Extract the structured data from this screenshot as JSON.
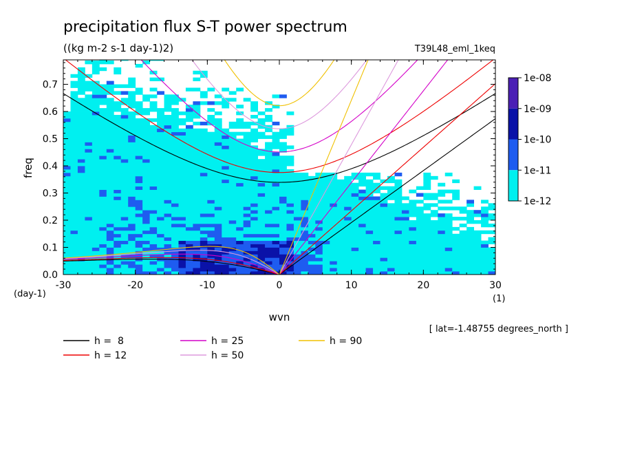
{
  "chart_data": {
    "type": "heatmap",
    "title": "precipitation flux S-T power spectrum",
    "subtitle": "((kg m-2 s-1 day-1)2)",
    "run_label": "T39L48_eml_1keq",
    "xlabel": "wvn",
    "ylabel": "freq",
    "x_unit": "(1)",
    "y_unit": "(day-1)",
    "xlim": [
      -30,
      30
    ],
    "ylim": [
      0,
      0.79
    ],
    "x_ticks": [
      -30,
      -20,
      -10,
      0,
      10,
      20,
      30
    ],
    "x_tick_labels": [
      "-30",
      "-20",
      "-10",
      "0",
      "10",
      "20",
      "30"
    ],
    "y_ticks": [
      0.0,
      0.1,
      0.2,
      0.3,
      0.4,
      0.5,
      0.6,
      0.7
    ],
    "y_tick_labels": [
      "0.0",
      "0.1",
      "0.2",
      "0.3",
      "0.4",
      "0.5",
      "0.6",
      "0.7"
    ],
    "annotation": "[ lat=-1.48755 degrees_north ]",
    "colorbar": {
      "levels": [
        "1e-08",
        "1e-09",
        "1e-10",
        "1e-11",
        "1e-12"
      ],
      "colors": [
        "#4b1fb5",
        "#0a12a8",
        "#1e5cf0",
        "#00f0f0"
      ]
    },
    "field_colors": {
      "low": "#00f0f0",
      "mid": "#1e5cf0",
      "high": "#0a12a8"
    },
    "dispersion_curves": [
      {
        "label": "h =  8",
        "h": 8,
        "color": "#000000"
      },
      {
        "label": "h = 12",
        "h": 12,
        "color": "#ee0000"
      },
      {
        "label": "h = 25",
        "h": 25,
        "color": "#d400c8"
      },
      {
        "label": "h = 50",
        "h": 50,
        "color": "#dd99dd"
      },
      {
        "label": "h = 90",
        "h": 90,
        "color": "#f0c000"
      }
    ]
  }
}
